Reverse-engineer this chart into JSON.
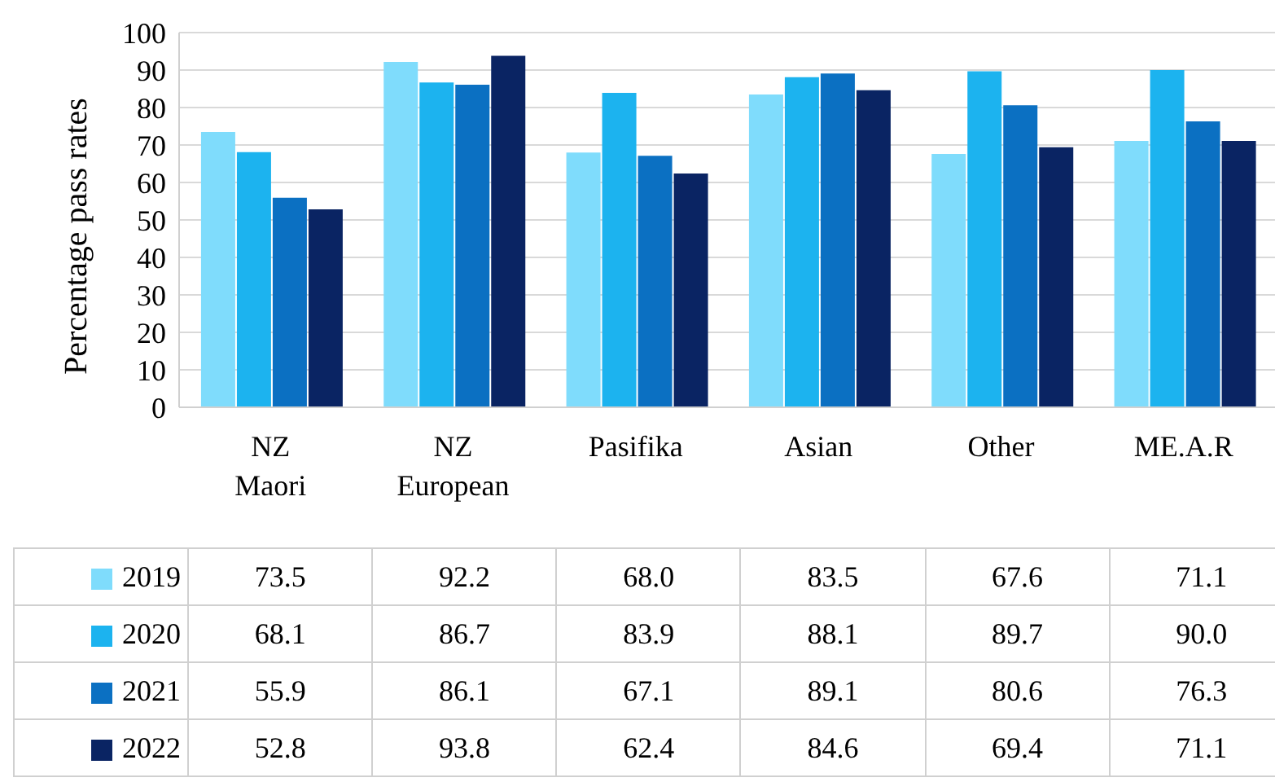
{
  "chart_data": {
    "type": "bar",
    "ylabel": "Percentage pass rates",
    "categories": [
      "NZ Maori",
      "NZ European",
      "Pasifika",
      "Asian",
      "Other",
      "ME.A.R"
    ],
    "series": [
      {
        "name": "2019",
        "color": "#7fdcfc",
        "values": [
          73.5,
          92.2,
          68.0,
          83.5,
          67.6,
          71.1
        ],
        "value_labels": [
          "73.5",
          "92.2",
          "68.0",
          "83.5",
          "67.6",
          "71.1"
        ]
      },
      {
        "name": "2020",
        "color": "#1cb3ef",
        "values": [
          68.1,
          86.7,
          83.9,
          88.1,
          89.7,
          90.0
        ],
        "value_labels": [
          "68.1",
          "86.7",
          "83.9",
          "88.1",
          "89.7",
          "90.0"
        ]
      },
      {
        "name": "2021",
        "color": "#0b70c2",
        "values": [
          55.9,
          86.1,
          67.1,
          89.1,
          80.6,
          76.3
        ],
        "value_labels": [
          "55.9",
          "86.1",
          "67.1",
          "89.1",
          "80.6",
          "76.3"
        ]
      },
      {
        "name": "2022",
        "color": "#0a2463",
        "values": [
          52.8,
          93.8,
          62.4,
          84.6,
          69.4,
          71.1
        ],
        "value_labels": [
          "52.8",
          "93.8",
          "62.4",
          "84.6",
          "69.4",
          "71.1"
        ]
      }
    ],
    "ylim": [
      0,
      100
    ],
    "yticks": [
      0,
      10,
      20,
      30,
      40,
      50,
      60,
      70,
      80,
      90,
      100
    ],
    "grid": "y",
    "legend": "bottom"
  }
}
